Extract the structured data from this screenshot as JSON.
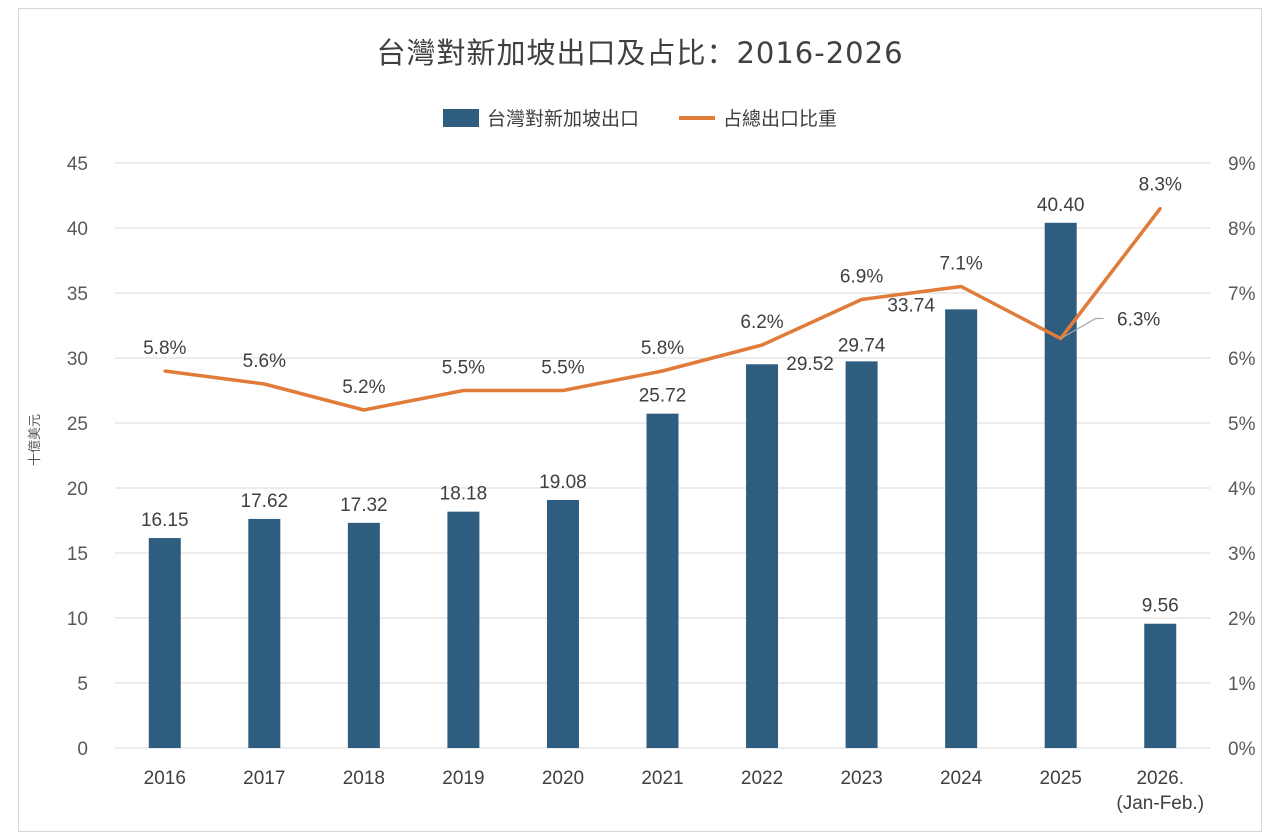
{
  "chart_data": {
    "type": "bar+line",
    "title": "台灣對新加坡出口及占比：2016-2026",
    "ylabel": "十億美元",
    "categories": [
      "2016",
      "2017",
      "2018",
      "2019",
      "2020",
      "2021",
      "2022",
      "2023",
      "2024",
      "2025",
      "2026.\n(Jan-Feb.)"
    ],
    "category_lines": [
      [
        "2016"
      ],
      [
        "2017"
      ],
      [
        "2018"
      ],
      [
        "2019"
      ],
      [
        "2020"
      ],
      [
        "2021"
      ],
      [
        "2022"
      ],
      [
        "2023"
      ],
      [
        "2024"
      ],
      [
        "2025"
      ],
      [
        "2026.",
        "(Jan-Feb.)"
      ]
    ],
    "series": [
      {
        "name": "台灣對新加坡出口",
        "type": "bar",
        "axis": "left",
        "color": "#2e5d80",
        "values": [
          16.15,
          17.62,
          17.32,
          18.18,
          19.08,
          25.72,
          29.52,
          29.74,
          33.74,
          40.4,
          9.56
        ],
        "labels": [
          "16.15",
          "17.62",
          "17.32",
          "18.18",
          "19.08",
          "25.72",
          "29.52",
          "29.74",
          "33.74",
          "40.40",
          "9.56"
        ]
      },
      {
        "name": "占總出口比重",
        "type": "line",
        "axis": "right",
        "color": "#e07b39",
        "values": [
          5.8,
          5.6,
          5.2,
          5.5,
          5.5,
          5.8,
          6.2,
          6.9,
          7.1,
          6.3,
          8.3
        ],
        "labels": [
          "5.8%",
          "5.6%",
          "5.2%",
          "5.5%",
          "5.5%",
          "5.8%",
          "6.2%",
          "6.9%",
          "7.1%",
          "6.3%",
          "8.3%"
        ]
      }
    ],
    "ylim_left": [
      0,
      45
    ],
    "yticks_left": [
      "0",
      "5",
      "10",
      "15",
      "20",
      "25",
      "30",
      "35",
      "40",
      "45"
    ],
    "ylim_right": [
      0,
      9
    ],
    "yticks_right": [
      "0%",
      "1%",
      "2%",
      "3%",
      "4%",
      "5%",
      "6%",
      "7%",
      "8%",
      "9%"
    ],
    "grid": true,
    "legend": "top-center"
  }
}
